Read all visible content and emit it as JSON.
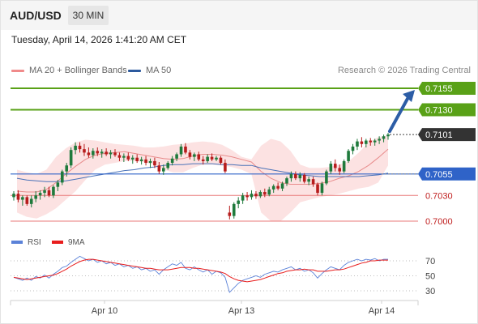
{
  "header": {
    "symbol": "AUD/USD",
    "timeframe": "30 MIN",
    "timestamp": "Tuesday, April 14, 2026 1:41:20 AM CET"
  },
  "legend": {
    "bollinger_label": "MA 20 + Bollinger Bands",
    "ma50_label": "MA 50",
    "research_credit": "Research © 2026 Trading Central"
  },
  "colors": {
    "resistance": "#59a117",
    "support": "#e97a7a",
    "pivot": "#2f63c8",
    "current": "#333333",
    "bollinger_fill": "#fbdddd",
    "ma20": "#e88c8c",
    "ma50": "#4a72b8",
    "bull": "#1f7a3c",
    "bear": "#b71d1d",
    "arrow": "#2c5da6",
    "rsi": "#5b82d8",
    "rsi_ma": "#e81d1d"
  },
  "chart_data": [
    {
      "type": "candlestick",
      "instrument": "AUD/USD",
      "interval": "30 MIN",
      "x_ticks": [
        "Apr 10",
        "Apr 13",
        "Apr 14"
      ],
      "ylim": [
        0.6992,
        0.7175
      ],
      "price_levels": [
        {
          "label": "0.7155",
          "value": 0.7155,
          "kind": "resistance"
        },
        {
          "label": "0.7130",
          "value": 0.713,
          "kind": "resistance"
        },
        {
          "label": "0.7101",
          "value": 0.7101,
          "kind": "current"
        },
        {
          "label": "0.7055",
          "value": 0.7055,
          "kind": "pivot"
        },
        {
          "label": "0.7030",
          "value": 0.703,
          "kind": "support"
        },
        {
          "label": "0.7000",
          "value": 0.7,
          "kind": "support"
        }
      ],
      "candles": [
        [
          0.7028,
          0.7035,
          0.7024,
          0.7032
        ],
        [
          0.7032,
          0.7036,
          0.7022,
          0.7025
        ],
        [
          0.7025,
          0.703,
          0.7018,
          0.7028
        ],
        [
          0.7028,
          0.703,
          0.7018,
          0.702
        ],
        [
          0.702,
          0.703,
          0.7016,
          0.7026
        ],
        [
          0.7026,
          0.7035,
          0.7022,
          0.703
        ],
        [
          0.703,
          0.7036,
          0.7025,
          0.7033
        ],
        [
          0.7033,
          0.704,
          0.7028,
          0.7036
        ],
        [
          0.7036,
          0.704,
          0.7028,
          0.703
        ],
        [
          0.703,
          0.7042,
          0.7027,
          0.704
        ],
        [
          0.704,
          0.7048,
          0.7035,
          0.7045
        ],
        [
          0.7045,
          0.706,
          0.7042,
          0.7058
        ],
        [
          0.7058,
          0.7068,
          0.7052,
          0.7065
        ],
        [
          0.7065,
          0.7086,
          0.7062,
          0.7083
        ],
        [
          0.7083,
          0.7092,
          0.7078,
          0.7088
        ],
        [
          0.7088,
          0.7092,
          0.708,
          0.7084
        ],
        [
          0.7084,
          0.709,
          0.7076,
          0.708
        ],
        [
          0.708,
          0.7086,
          0.7074,
          0.7077
        ],
        [
          0.7077,
          0.7085,
          0.7073,
          0.7082
        ],
        [
          0.7082,
          0.7086,
          0.7076,
          0.7079
        ],
        [
          0.7079,
          0.7084,
          0.7074,
          0.7081
        ],
        [
          0.7081,
          0.7085,
          0.7076,
          0.7078
        ],
        [
          0.7078,
          0.7083,
          0.7073,
          0.708
        ],
        [
          0.708,
          0.7084,
          0.7075,
          0.7077
        ],
        [
          0.7077,
          0.708,
          0.707,
          0.7074
        ],
        [
          0.7074,
          0.7079,
          0.7069,
          0.7076
        ],
        [
          0.7076,
          0.708,
          0.707,
          0.7072
        ],
        [
          0.7072,
          0.7077,
          0.7067,
          0.7074
        ],
        [
          0.7074,
          0.7078,
          0.7068,
          0.707
        ],
        [
          0.707,
          0.7075,
          0.7066,
          0.7072
        ],
        [
          0.7072,
          0.7076,
          0.7065,
          0.7068
        ],
        [
          0.7068,
          0.7073,
          0.7062,
          0.707
        ],
        [
          0.707,
          0.7074,
          0.7062,
          0.7065
        ],
        [
          0.7065,
          0.7069,
          0.7055,
          0.7058
        ],
        [
          0.7058,
          0.7066,
          0.7054,
          0.7062
        ],
        [
          0.7062,
          0.707,
          0.706,
          0.7068
        ],
        [
          0.7068,
          0.7076,
          0.7065,
          0.7073
        ],
        [
          0.7073,
          0.708,
          0.707,
          0.7078
        ],
        [
          0.7078,
          0.709,
          0.7075,
          0.7087
        ],
        [
          0.7087,
          0.7091,
          0.7078,
          0.708
        ],
        [
          0.708,
          0.7083,
          0.7072,
          0.7075
        ],
        [
          0.7075,
          0.708,
          0.707,
          0.7078
        ],
        [
          0.7078,
          0.7081,
          0.707,
          0.7072
        ],
        [
          0.7072,
          0.7076,
          0.7066,
          0.707
        ],
        [
          0.707,
          0.7078,
          0.7068,
          0.7075
        ],
        [
          0.7075,
          0.7079,
          0.707,
          0.7072
        ],
        [
          0.7072,
          0.7076,
          0.707,
          0.7074
        ],
        [
          0.7074,
          0.7076,
          0.7066,
          0.7068
        ],
        [
          0.7068,
          0.7072,
          0.7056,
          0.7058
        ],
        [
          0.701,
          0.7018,
          0.7002,
          0.7006
        ],
        [
          0.7006,
          0.7022,
          0.7003,
          0.702
        ],
        [
          0.702,
          0.7028,
          0.7015,
          0.7024
        ],
        [
          0.7024,
          0.7033,
          0.702,
          0.703
        ],
        [
          0.703,
          0.7034,
          0.7024,
          0.7028
        ],
        [
          0.7028,
          0.7036,
          0.7025,
          0.7032
        ],
        [
          0.7032,
          0.7035,
          0.7026,
          0.7029
        ],
        [
          0.7029,
          0.7036,
          0.7027,
          0.7034
        ],
        [
          0.7034,
          0.7038,
          0.7028,
          0.7031
        ],
        [
          0.7031,
          0.704,
          0.7029,
          0.7037
        ],
        [
          0.7037,
          0.7043,
          0.7033,
          0.7041
        ],
        [
          0.7041,
          0.7045,
          0.7036,
          0.7038
        ],
        [
          0.7038,
          0.7046,
          0.7035,
          0.7044
        ],
        [
          0.7044,
          0.7052,
          0.7041,
          0.705
        ],
        [
          0.705,
          0.7058,
          0.7046,
          0.7055
        ],
        [
          0.7055,
          0.7058,
          0.7048,
          0.705
        ],
        [
          0.705,
          0.7057,
          0.7046,
          0.7054
        ],
        [
          0.7054,
          0.7056,
          0.7044,
          0.7046
        ],
        [
          0.7046,
          0.7052,
          0.7042,
          0.7049
        ],
        [
          0.7049,
          0.7052,
          0.704,
          0.7043
        ],
        [
          0.7043,
          0.7045,
          0.703,
          0.7033
        ],
        [
          0.7033,
          0.7046,
          0.703,
          0.7044
        ],
        [
          0.7044,
          0.706,
          0.7042,
          0.7058
        ],
        [
          0.7058,
          0.707,
          0.7055,
          0.7067
        ],
        [
          0.7067,
          0.7072,
          0.7058,
          0.7062
        ],
        [
          0.7062,
          0.7066,
          0.7054,
          0.7058
        ],
        [
          0.7058,
          0.7072,
          0.7056,
          0.707
        ],
        [
          0.707,
          0.7084,
          0.7068,
          0.7082
        ],
        [
          0.7082,
          0.709,
          0.7078,
          0.7087
        ],
        [
          0.7087,
          0.7096,
          0.7083,
          0.7093
        ],
        [
          0.7093,
          0.7098,
          0.7086,
          0.709
        ],
        [
          0.709,
          0.7096,
          0.7086,
          0.7094
        ],
        [
          0.7094,
          0.7097,
          0.7088,
          0.7092
        ],
        [
          0.7092,
          0.7096,
          0.7088,
          0.7094
        ],
        [
          0.7094,
          0.7099,
          0.709,
          0.7096
        ],
        [
          0.7096,
          0.7101,
          0.7092,
          0.7099
        ],
        [
          0.7099,
          0.7103,
          0.7095,
          0.7101
        ]
      ],
      "ma20": [
        0.7035,
        0.7034,
        0.7034,
        0.7037,
        0.7045,
        0.7055,
        0.7064,
        0.7072,
        0.7077,
        0.7079,
        0.708,
        0.7081,
        0.7079,
        0.7077,
        0.7075,
        0.7073,
        0.7072,
        0.7073,
        0.7076,
        0.7078,
        0.7078,
        0.7077,
        0.7075,
        0.7072,
        0.7069,
        0.7058,
        0.705,
        0.7045,
        0.7043,
        0.7043,
        0.7043,
        0.7044,
        0.7046,
        0.705,
        0.7053,
        0.7058,
        0.7065,
        0.7074,
        0.7084
      ],
      "bb_upper": [
        0.706,
        0.7057,
        0.7055,
        0.706,
        0.7075,
        0.7085,
        0.7092,
        0.7095,
        0.7094,
        0.7092,
        0.709,
        0.7089,
        0.7088,
        0.7086,
        0.7086,
        0.7087,
        0.7089,
        0.709,
        0.7092,
        0.7093,
        0.7092,
        0.7089,
        0.7083,
        0.7075,
        0.7072,
        0.7088,
        0.7096,
        0.7093,
        0.7082,
        0.7066,
        0.7062,
        0.7062,
        0.7063,
        0.7066,
        0.707,
        0.708,
        0.7092,
        0.7098,
        0.71
      ],
      "bb_lower": [
        0.701,
        0.7005,
        0.7003,
        0.7008,
        0.7015,
        0.7025,
        0.7035,
        0.7048,
        0.706,
        0.7066,
        0.7068,
        0.707,
        0.707,
        0.7069,
        0.7066,
        0.706,
        0.7057,
        0.7057,
        0.7062,
        0.7066,
        0.7066,
        0.7065,
        0.7063,
        0.706,
        0.7055,
        0.701,
        0.7,
        0.7,
        0.701,
        0.7022,
        0.7025,
        0.7028,
        0.703,
        0.7032,
        0.7035,
        0.7038,
        0.704,
        0.7045,
        0.7065
      ],
      "ma50": [
        0.705,
        0.7048,
        0.7047,
        0.7046,
        0.7046,
        0.7047,
        0.7049,
        0.7051,
        0.7053,
        0.7055,
        0.7057,
        0.7059,
        0.706,
        0.7062,
        0.7063,
        0.7065,
        0.7066,
        0.7066,
        0.7067,
        0.7067,
        0.7067,
        0.7066,
        0.7066,
        0.7065,
        0.7065,
        0.7062,
        0.706,
        0.7058,
        0.7056,
        0.7054,
        0.7053,
        0.7052,
        0.7052,
        0.7052,
        0.7052,
        0.7052,
        0.7053,
        0.7054,
        0.7056
      ],
      "forecast": {
        "from": 0.7101,
        "to": 0.7155
      }
    },
    {
      "type": "line",
      "indicator": "RSI",
      "series_names": [
        "RSI",
        "9MA"
      ],
      "ylim": [
        20,
        80
      ],
      "y_ticks": [
        70,
        50,
        30
      ],
      "rsi": [
        48,
        46,
        44,
        47,
        44,
        49,
        47,
        51,
        47,
        52,
        56,
        61,
        63,
        68,
        72,
        76,
        73,
        70,
        72,
        68,
        70,
        66,
        68,
        64,
        66,
        62,
        64,
        60,
        62,
        58,
        60,
        56,
        58,
        52,
        58,
        62,
        66,
        64,
        68,
        60,
        58,
        62,
        58,
        55,
        58,
        52,
        56,
        54,
        48,
        28,
        34,
        40,
        44,
        46,
        48,
        50,
        48,
        52,
        54,
        56,
        55,
        58,
        60,
        62,
        58,
        60,
        56,
        58,
        54,
        47,
        53,
        58,
        62,
        60,
        58,
        64,
        68,
        70,
        72,
        70,
        72,
        71,
        73,
        70,
        72,
        72
      ],
      "rsi_ma": [
        48,
        47,
        46,
        45,
        46,
        47,
        48,
        49,
        50,
        51,
        53,
        56,
        59,
        63,
        66,
        69,
        71,
        72,
        72,
        71,
        70,
        69,
        68,
        67,
        66,
        65,
        64,
        63,
        62,
        61,
        60,
        60,
        59,
        58,
        58,
        58,
        59,
        60,
        61,
        61,
        61,
        60,
        60,
        59,
        58,
        57,
        56,
        55,
        53,
        49,
        46,
        44,
        43,
        42,
        43,
        44,
        45,
        47,
        49,
        51,
        53,
        54,
        56,
        57,
        58,
        58,
        59,
        58,
        58,
        56,
        56,
        56,
        57,
        58,
        58,
        59,
        61,
        63,
        65,
        67,
        68,
        70,
        70,
        71,
        71,
        71
      ]
    }
  ]
}
